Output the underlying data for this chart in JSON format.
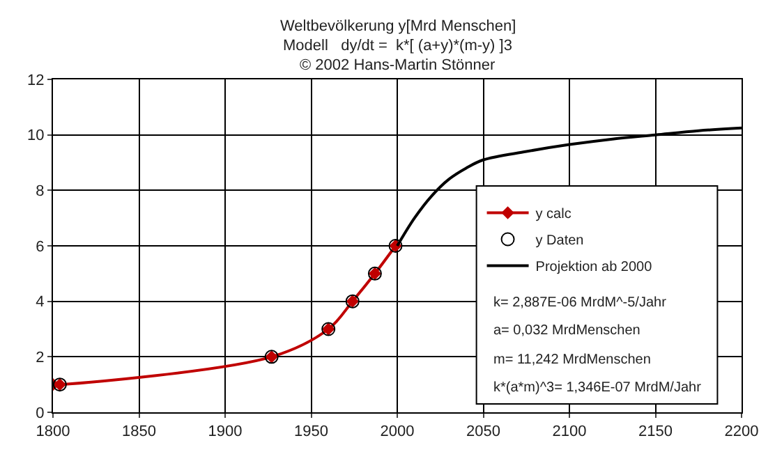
{
  "chart_data": {
    "type": "line",
    "title": "Weltbevölkerung y[Mrd Menschen]",
    "subtitle": "Modell   dy/dt =  k*[ (a+y)*(m-y) ]3",
    "annotations": [
      "© 2002 Hans-Martin Stönner",
      "k= 2,887E-06 MrdM^-5/Jahr",
      "a= 0,032 MrdMenschen",
      "m= 11,242 MrdMenschen",
      "k*(a*m)^3= 1,346E-07 MrdM/Jahr"
    ],
    "xlim": [
      1800,
      2200
    ],
    "xticks": [
      1800,
      1850,
      1900,
      1950,
      2000,
      2050,
      2100,
      2150,
      2200
    ],
    "ylim": [
      0,
      12
    ],
    "yticks": [
      0,
      2,
      4,
      6,
      8,
      10,
      12
    ],
    "grid": true,
    "legend": "right",
    "series": [
      {
        "name": "y calc",
        "color": "#c00000",
        "marker": "diamond",
        "x": [
          1800,
          1804,
          1927,
          1960,
          1974,
          1987,
          1999
        ],
        "values": [
          1.0,
          1.0,
          2.0,
          3.0,
          4.0,
          5.0,
          6.0
        ]
      },
      {
        "name": "y Daten",
        "type": "scatter",
        "color": "#000000",
        "marker": "circle",
        "x": [
          1804,
          1927,
          1960,
          1974,
          1987,
          1999
        ],
        "values": [
          1.0,
          2.0,
          3.0,
          4.0,
          5.0,
          6.0
        ]
      },
      {
        "name": "Projektion ab 2000",
        "color": "#000000",
        "marker": "none",
        "x": [
          2000,
          2010,
          2020,
          2030,
          2040,
          2050,
          2075,
          2100,
          2125,
          2150,
          2175,
          2200
        ],
        "values": [
          6.0,
          7.0,
          7.8,
          8.4,
          8.8,
          9.1,
          9.4,
          9.65,
          9.85,
          10.0,
          10.15,
          10.25
        ]
      }
    ]
  }
}
